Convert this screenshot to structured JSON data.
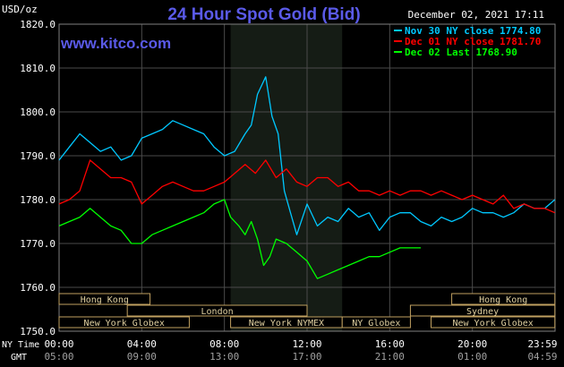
{
  "header": {
    "title": "24 Hour Spot Gold (Bid)",
    "date": "December 02, 2021 17:11",
    "unit": "USD/oz",
    "website": "www.kitco.com"
  },
  "colors": {
    "background": "#000000",
    "grid": "#4a4a4a",
    "title": "#5a5ae8",
    "website": "#5a5ae8",
    "text": "#ffffff",
    "nov30": "#00c8ff",
    "dec01": "#ff0000",
    "dec02": "#00ff00",
    "highlight": "#151c15",
    "session_fill": "#000000",
    "session_border": "#c0a060",
    "session_text": "#e0d0a0"
  },
  "legend": [
    {
      "label": "Nov 30 NY close 1774.80",
      "color": "#00c8ff"
    },
    {
      "label": "Dec 01 NY close 1781.70",
      "color": "#ff0000"
    },
    {
      "label": "Dec 02 Last 1768.90",
      "color": "#00ff00"
    }
  ],
  "axis": {
    "y_ticks": [
      "1820.0",
      "1810.0",
      "1800.0",
      "1790.0",
      "1780.0",
      "1770.0",
      "1760.0",
      "1750.0"
    ],
    "ny_label": "NY Time",
    "gmt_label": "GMT",
    "ny_times": [
      "00:00",
      "04:00",
      "08:00",
      "12:00",
      "16:00",
      "20:00",
      "23:59"
    ],
    "gmt_times": [
      "05:00",
      "09:00",
      "13:00",
      "17:00",
      "21:00",
      "01:00",
      "04:59"
    ]
  },
  "sessions": [
    {
      "label": "Hong Kong",
      "start": 0,
      "end": 4.4
    },
    {
      "label": "London",
      "start": 3.3,
      "end": 12.0
    },
    {
      "label": "New York Globex",
      "start": 0,
      "end": 6.3
    },
    {
      "label": "New York NYMEX",
      "start": 8.3,
      "end": 13.7
    },
    {
      "label": "NY Globex",
      "start": 13.7,
      "end": 17.0
    },
    {
      "label": "Hong Kong",
      "start": 19.0,
      "end": 23.99
    },
    {
      "label": "Sydney",
      "start": 17.0,
      "end": 23.99
    },
    {
      "label": "New York Globex",
      "start": 18.0,
      "end": 23.99
    }
  ],
  "chart_data": {
    "type": "line",
    "title": "24 Hour Spot Gold (Bid)",
    "ylabel": "USD/oz",
    "xlabel": "NY Time",
    "ylim": [
      1750,
      1820
    ],
    "xlim": [
      0,
      24
    ],
    "x_unit": "hours NY time",
    "highlight_range": [
      8.3,
      13.7
    ],
    "series": [
      {
        "name": "Nov 30 NY close 1774.80",
        "color": "#00c8ff",
        "x": [
          0,
          0.5,
          1,
          1.5,
          2,
          2.5,
          3,
          3.5,
          4,
          4.5,
          5,
          5.5,
          6,
          6.5,
          7,
          7.5,
          8,
          8.5,
          9,
          9.3,
          9.6,
          10,
          10.3,
          10.6,
          10.9,
          11.2,
          11.5,
          12,
          12.5,
          13,
          13.5,
          14,
          14.5,
          15,
          15.5,
          16,
          16.5,
          17,
          17.5,
          18,
          18.5,
          19,
          19.5,
          20,
          20.5,
          21,
          21.5,
          22,
          22.5,
          23,
          23.5,
          23.99
        ],
        "values": [
          1789,
          1792,
          1795,
          1793,
          1791,
          1792,
          1789,
          1790,
          1794,
          1795,
          1796,
          1798,
          1797,
          1796,
          1795,
          1792,
          1790,
          1791,
          1795,
          1797,
          1804,
          1808,
          1799,
          1795,
          1782,
          1777,
          1772,
          1779,
          1774,
          1776,
          1775,
          1778,
          1776,
          1777,
          1773,
          1776,
          1777,
          1777,
          1775,
          1774,
          1776,
          1775,
          1776,
          1778,
          1777,
          1777,
          1776,
          1777,
          1779,
          1778,
          1778,
          1780
        ]
      },
      {
        "name": "Dec 01 NY close 1781.70",
        "color": "#ff0000",
        "x": [
          0,
          0.5,
          1,
          1.5,
          2,
          2.5,
          3,
          3.5,
          4,
          4.5,
          5,
          5.5,
          6,
          6.5,
          7,
          7.5,
          8,
          8.5,
          9,
          9.5,
          10,
          10.5,
          11,
          11.5,
          12,
          12.5,
          13,
          13.5,
          14,
          14.5,
          15,
          15.5,
          16,
          16.5,
          17,
          17.5,
          18,
          18.5,
          19,
          19.5,
          20,
          20.5,
          21,
          21.5,
          22,
          22.5,
          23,
          23.5,
          23.99
        ],
        "values": [
          1779,
          1780,
          1782,
          1789,
          1787,
          1785,
          1785,
          1784,
          1779,
          1781,
          1783,
          1784,
          1783,
          1782,
          1782,
          1783,
          1784,
          1786,
          1788,
          1786,
          1789,
          1785,
          1787,
          1784,
          1783,
          1785,
          1785,
          1783,
          1784,
          1782,
          1782,
          1781,
          1782,
          1781,
          1782,
          1782,
          1781,
          1782,
          1781,
          1780,
          1781,
          1780,
          1779,
          1781,
          1778,
          1779,
          1778,
          1778,
          1777
        ]
      },
      {
        "name": "Dec 02 Last 1768.90",
        "color": "#00ff00",
        "x": [
          0,
          0.5,
          1,
          1.5,
          2,
          2.5,
          3,
          3.5,
          4,
          4.5,
          5,
          5.5,
          6,
          6.5,
          7,
          7.5,
          8,
          8.3,
          8.7,
          9,
          9.3,
          9.6,
          9.9,
          10.2,
          10.5,
          11,
          11.5,
          12,
          12.5,
          13,
          13.5,
          14,
          14.5,
          15,
          15.5,
          16,
          16.5,
          17,
          17.5
        ],
        "values": [
          1774,
          1775,
          1776,
          1778,
          1776,
          1774,
          1773,
          1770,
          1770,
          1772,
          1773,
          1774,
          1775,
          1776,
          1777,
          1779,
          1780,
          1776,
          1774,
          1772,
          1775,
          1771,
          1765,
          1767,
          1771,
          1770,
          1768,
          1766,
          1762,
          1763,
          1764,
          1765,
          1766,
          1767,
          1767,
          1768,
          1769,
          1769,
          1769
        ]
      }
    ]
  }
}
